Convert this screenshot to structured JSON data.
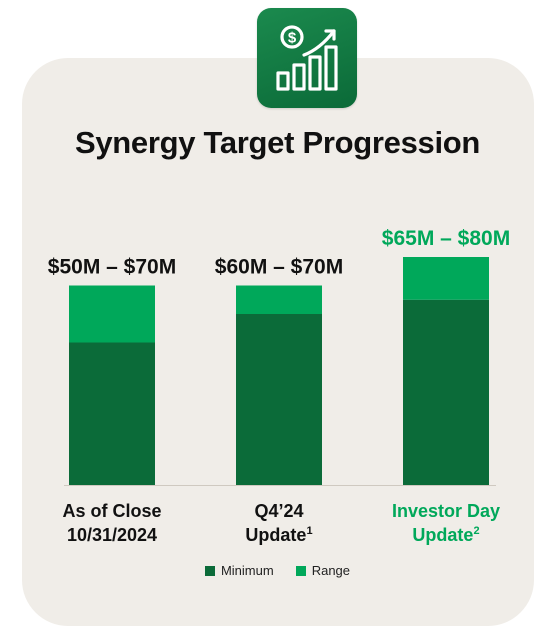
{
  "title": "Synergy Target Progression",
  "icon": "dollar-growth-chart-icon",
  "colors": {
    "minimum": "#0b6b39",
    "range": "#00a85a",
    "highlight_text": "#00a85a",
    "text": "#111111",
    "card": "#f0ede8"
  },
  "chart_data": {
    "type": "bar",
    "stacked": true,
    "categories": [
      [
        "As of Close",
        "10/31/2024"
      ],
      [
        "Q4’24",
        "Update",
        "1"
      ],
      [
        "Investor Day",
        "Update",
        "2"
      ]
    ],
    "series": [
      {
        "name": "Minimum",
        "values": [
          50,
          60,
          65
        ]
      },
      {
        "name": "Range",
        "values": [
          20,
          10,
          15
        ]
      }
    ],
    "value_labels": [
      "$50M – $70M",
      "$60M – $70M",
      "$65M – $80M"
    ],
    "highlight_index": 2,
    "ylim": [
      0,
      80
    ],
    "unit": "$M",
    "grid": false,
    "legend_position": "bottom-center"
  },
  "legend": [
    {
      "label": "Minimum",
      "color": "#0b6b39"
    },
    {
      "label": "Range",
      "color": "#00a85a"
    }
  ]
}
